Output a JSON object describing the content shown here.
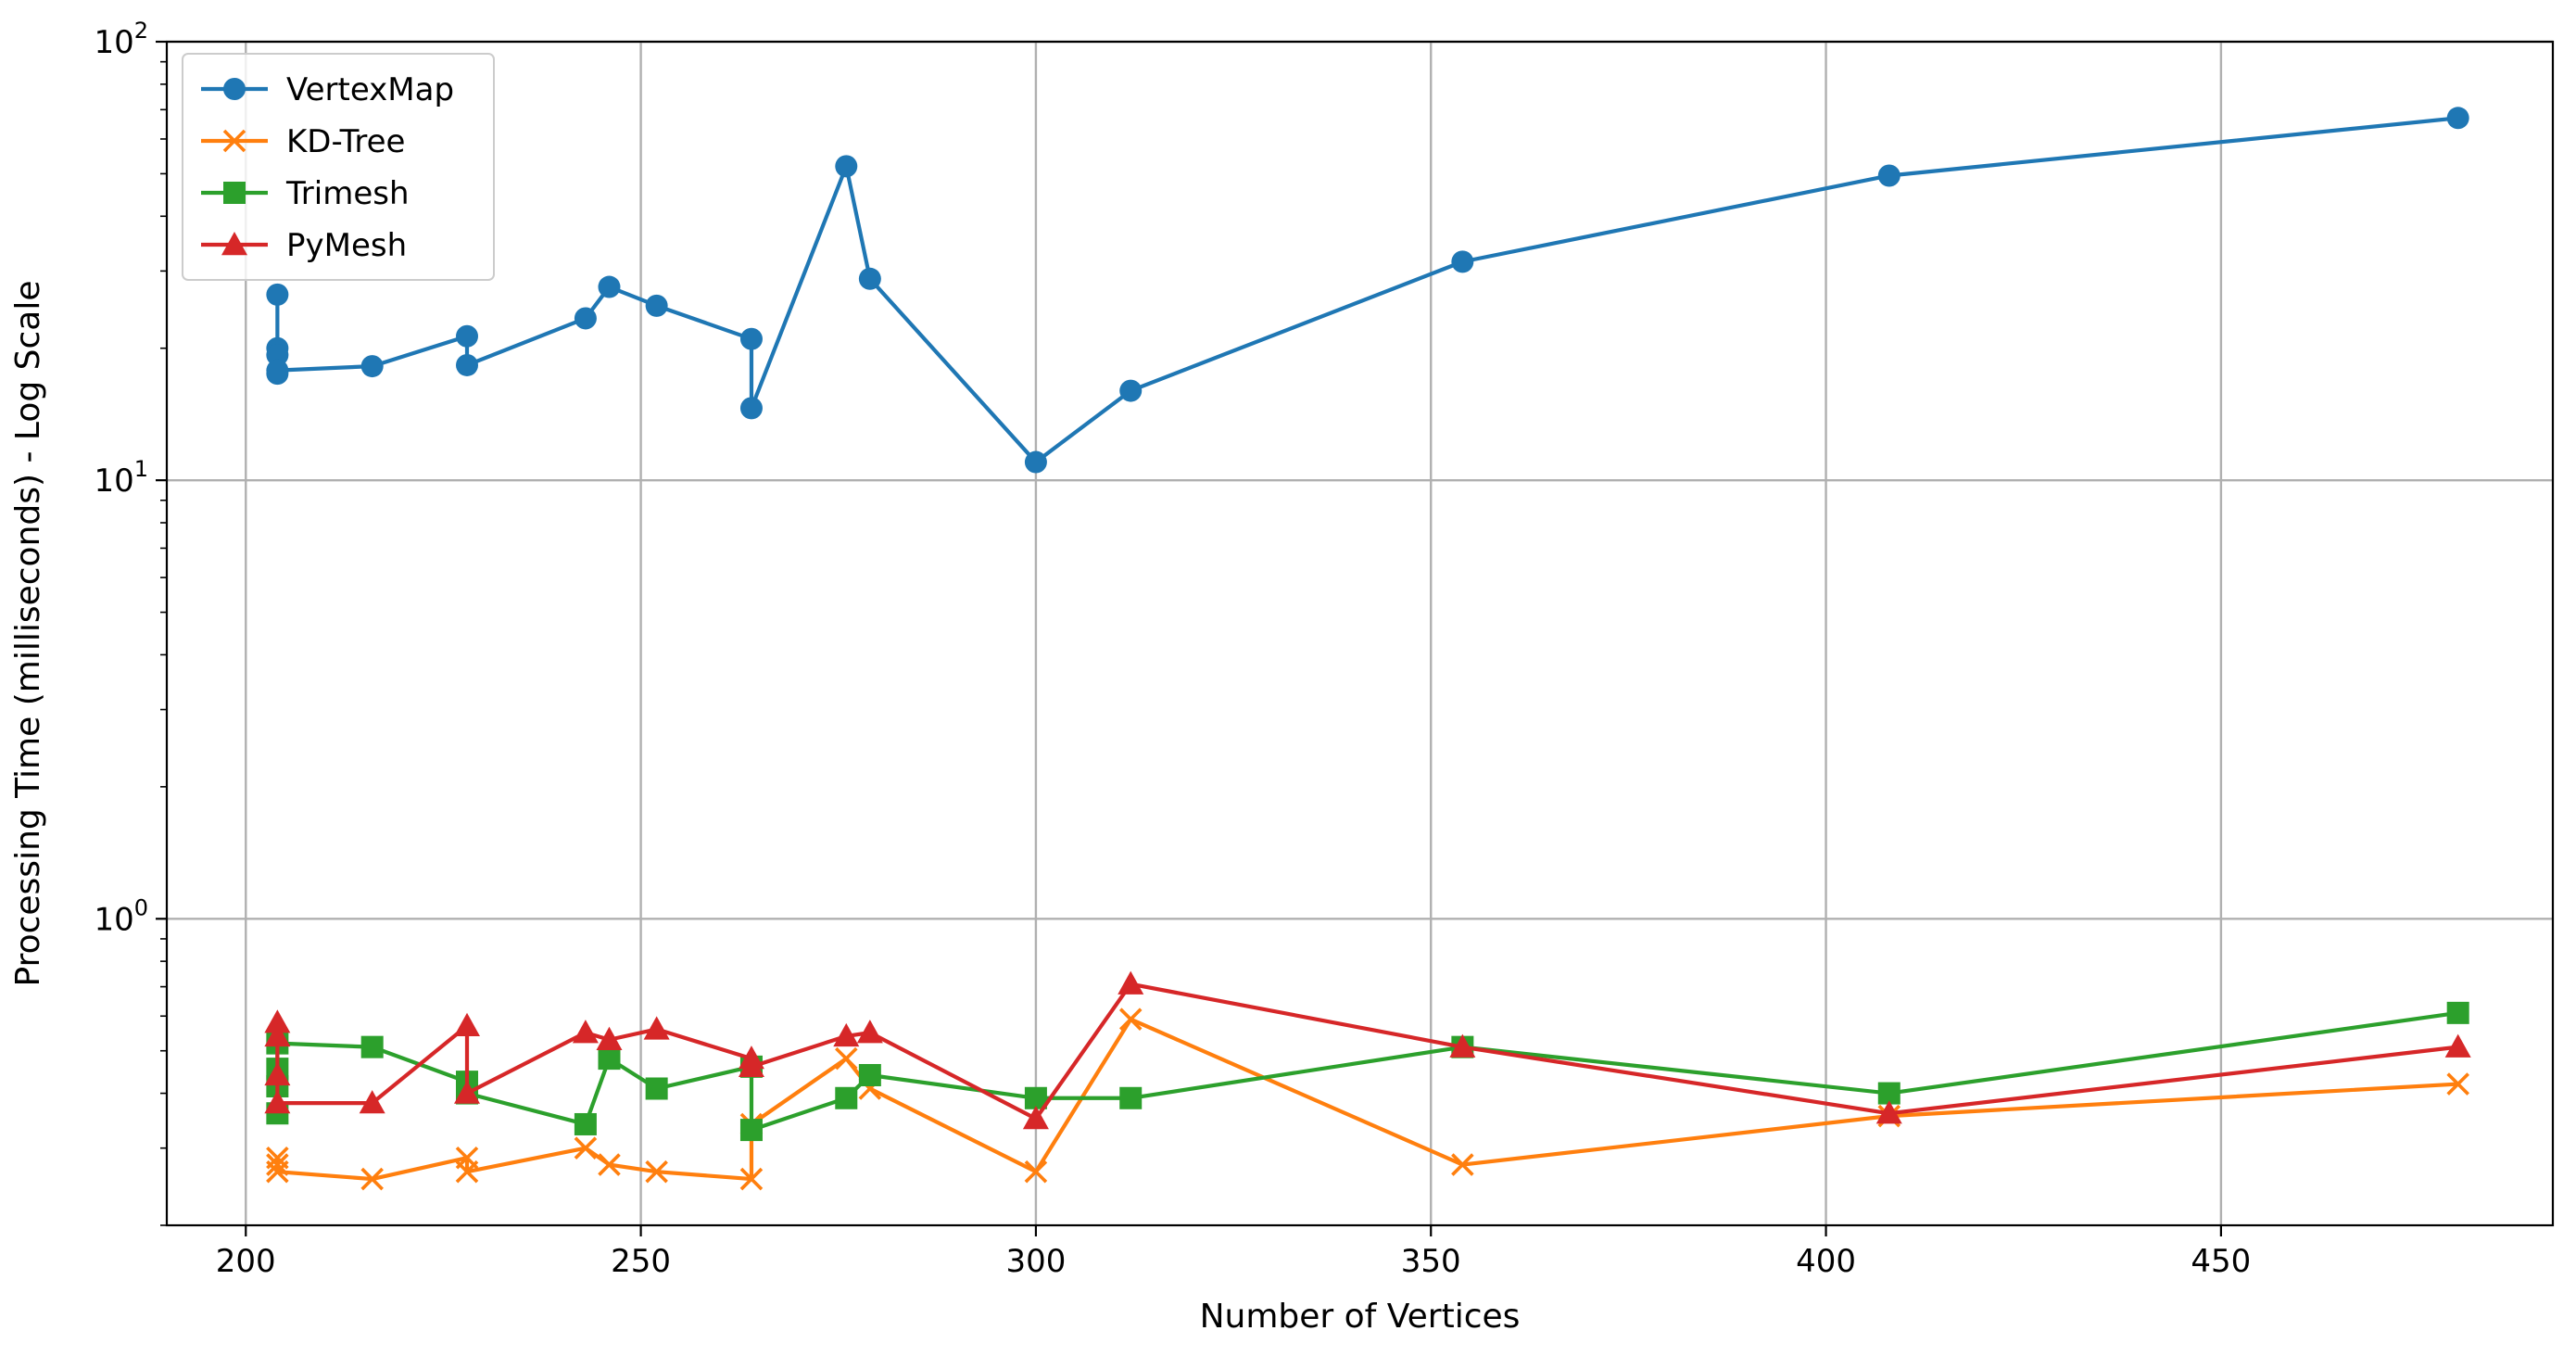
{
  "chart_data": {
    "type": "line",
    "xlabel": "Number of Vertices",
    "ylabel": "Processing Time (milliseconds) - Log Scale",
    "xlim": [
      190,
      492
    ],
    "ylim": [
      0.2,
      100
    ],
    "yscale": "log",
    "grid": true,
    "legend_position": "top-left",
    "x_ticks": [
      {
        "value": 200,
        "label": "200"
      },
      {
        "value": 250,
        "label": "250"
      },
      {
        "value": 300,
        "label": "300"
      },
      {
        "value": 350,
        "label": "350"
      },
      {
        "value": 400,
        "label": "400"
      },
      {
        "value": 450,
        "label": "450"
      }
    ],
    "y_ticks": [
      {
        "value": 1,
        "base": "10",
        "exp": "0"
      },
      {
        "value": 10,
        "base": "10",
        "exp": "1"
      },
      {
        "value": 100,
        "base": "10",
        "exp": "2"
      }
    ],
    "series": [
      {
        "name": "VertexMap",
        "color": "#1f77b4",
        "marker": "circle",
        "points": [
          [
            204,
            26.5
          ],
          [
            204,
            20.0
          ],
          [
            204,
            19.3
          ],
          [
            204,
            17.5
          ],
          [
            204,
            17.8
          ],
          [
            216,
            18.2
          ],
          [
            228,
            21.3
          ],
          [
            228,
            18.3
          ],
          [
            243,
            23.4
          ],
          [
            246,
            27.6
          ],
          [
            252,
            25.0
          ],
          [
            264,
            21.0
          ],
          [
            264,
            14.6
          ],
          [
            276,
            52.0
          ],
          [
            279,
            28.8
          ],
          [
            300,
            11.0
          ],
          [
            312,
            16.0
          ],
          [
            354,
            31.5
          ],
          [
            408,
            49.5
          ],
          [
            480,
            67.0
          ]
        ]
      },
      {
        "name": "KD-Tree",
        "color": "#ff7f0e",
        "marker": "x",
        "points": [
          [
            204,
            0.285
          ],
          [
            204,
            0.275
          ],
          [
            204,
            0.265
          ],
          [
            216,
            0.255
          ],
          [
            228,
            0.285
          ],
          [
            228,
            0.265
          ],
          [
            243,
            0.3
          ],
          [
            246,
            0.275
          ],
          [
            252,
            0.265
          ],
          [
            264,
            0.255
          ],
          [
            264,
            0.34
          ],
          [
            276,
            0.48
          ],
          [
            279,
            0.41
          ],
          [
            300,
            0.265
          ],
          [
            312,
            0.59
          ],
          [
            354,
            0.275
          ],
          [
            408,
            0.355
          ],
          [
            480,
            0.42
          ]
        ]
      },
      {
        "name": "Trimesh",
        "color": "#2ca02c",
        "marker": "square",
        "points": [
          [
            204,
            0.36
          ],
          [
            204,
            0.415
          ],
          [
            204,
            0.455
          ],
          [
            204,
            0.52
          ],
          [
            216,
            0.51
          ],
          [
            228,
            0.425
          ],
          [
            228,
            0.4
          ],
          [
            243,
            0.34
          ],
          [
            246,
            0.48
          ],
          [
            252,
            0.41
          ],
          [
            264,
            0.46
          ],
          [
            264,
            0.33
          ],
          [
            276,
            0.39
          ],
          [
            279,
            0.44
          ],
          [
            300,
            0.39
          ],
          [
            312,
            0.39
          ],
          [
            354,
            0.51
          ],
          [
            408,
            0.4
          ],
          [
            480,
            0.61
          ]
        ]
      },
      {
        "name": "PyMesh",
        "color": "#d62728",
        "marker": "triangle",
        "points": [
          [
            204,
            0.58
          ],
          [
            204,
            0.54
          ],
          [
            204,
            0.44
          ],
          [
            204,
            0.38
          ],
          [
            216,
            0.38
          ],
          [
            228,
            0.57
          ],
          [
            228,
            0.4
          ],
          [
            243,
            0.55
          ],
          [
            246,
            0.53
          ],
          [
            252,
            0.56
          ],
          [
            264,
            0.48
          ],
          [
            264,
            0.46
          ],
          [
            276,
            0.54
          ],
          [
            279,
            0.55
          ],
          [
            300,
            0.35
          ],
          [
            312,
            0.71
          ],
          [
            354,
            0.51
          ],
          [
            408,
            0.36
          ],
          [
            480,
            0.51
          ]
        ]
      }
    ]
  }
}
